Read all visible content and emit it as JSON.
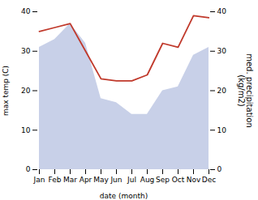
{
  "chart_data": {
    "type": "line",
    "categories": [
      "Jan",
      "Feb",
      "Mar",
      "Apr",
      "May",
      "Jun",
      "Jul",
      "Aug",
      "Sep",
      "Oct",
      "Nov",
      "Dec"
    ],
    "series": [
      {
        "type": "area",
        "axis": "y2",
        "color": "#c8d0e8",
        "values": [
          31,
          33,
          37,
          32,
          18,
          17,
          14,
          14,
          20,
          21,
          29,
          31
        ]
      },
      {
        "type": "line",
        "color": "#c0392b",
        "values": [
          35,
          36,
          37,
          30,
          23,
          22.5,
          22.5,
          24,
          32,
          31,
          39,
          38.5
        ]
      }
    ],
    "xlabel": "date (month)",
    "ylabel": "max temp (C)",
    "y2label": "med. precipitation\n(kg/m2)",
    "ylim": [
      0,
      40
    ],
    "yticks": [
      0,
      10,
      20,
      30,
      40
    ],
    "y2lim": [
      0,
      40
    ],
    "y2ticks": [
      0,
      10,
      20,
      30,
      40
    ],
    "grid": false
  }
}
